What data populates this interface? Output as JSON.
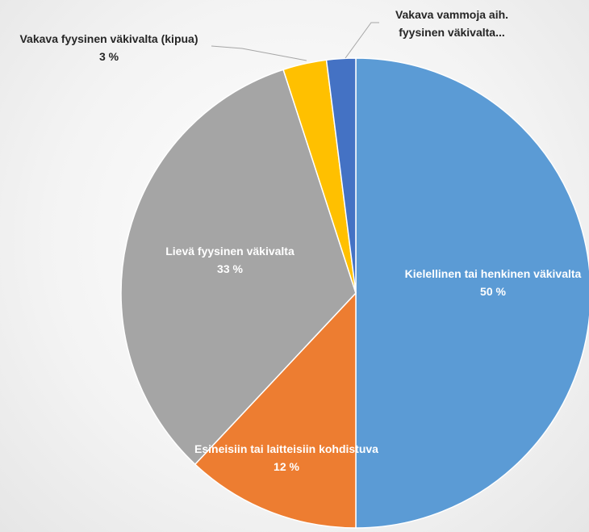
{
  "chart_data": {
    "type": "pie",
    "categories": [
      "Kielellinen tai henkinen väkivalta",
      "Esineisiin tai laitteisiin kohdistuva",
      "Lievä fyysinen väkivalta",
      "Vakava fyysinen väkivalta (kipua)",
      "Vakava vammoja aih. fyysinen väkivalta..."
    ],
    "values": [
      50,
      12,
      33,
      3,
      2
    ],
    "value_labels": [
      "50 %",
      "12 %",
      "33 %",
      "3 %",
      null
    ],
    "colors": [
      "#5b9bd5",
      "#ed7d31",
      "#a5a5a5",
      "#ffc000",
      "#4472c4"
    ]
  }
}
